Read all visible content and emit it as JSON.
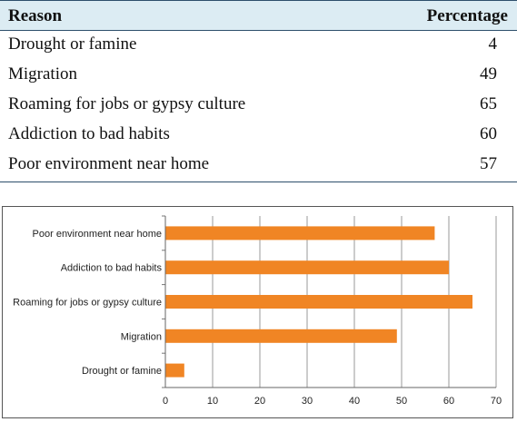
{
  "table": {
    "headers": {
      "reason": "Reason",
      "percentage": "Percentage"
    },
    "rows": [
      {
        "reason": "Drought or famine",
        "percentage": "4"
      },
      {
        "reason": "Migration",
        "percentage": "49"
      },
      {
        "reason": "Roaming for jobs or gypsy culture",
        "percentage": "65"
      },
      {
        "reason": "Addiction to bad habits",
        "percentage": "60"
      },
      {
        "reason": "Poor environment near home",
        "percentage": "57"
      }
    ]
  },
  "colors": {
    "bar": "#f08524",
    "header_bg": "#dcecf3",
    "rule": "#2d4f6b",
    "grid": "#9a9a9a"
  },
  "chart_data": {
    "type": "bar",
    "orientation": "horizontal",
    "categories": [
      "Poor environment near home",
      "Addiction to bad habits",
      "Roaming for jobs or gypsy culture",
      "Migration",
      "Drought or famine"
    ],
    "values": [
      57,
      60,
      65,
      49,
      4
    ],
    "xlim": [
      0,
      70
    ],
    "xticks": [
      0,
      10,
      20,
      30,
      40,
      50,
      60,
      70
    ],
    "grid": "vertical",
    "title": "",
    "xlabel": "",
    "ylabel": ""
  }
}
